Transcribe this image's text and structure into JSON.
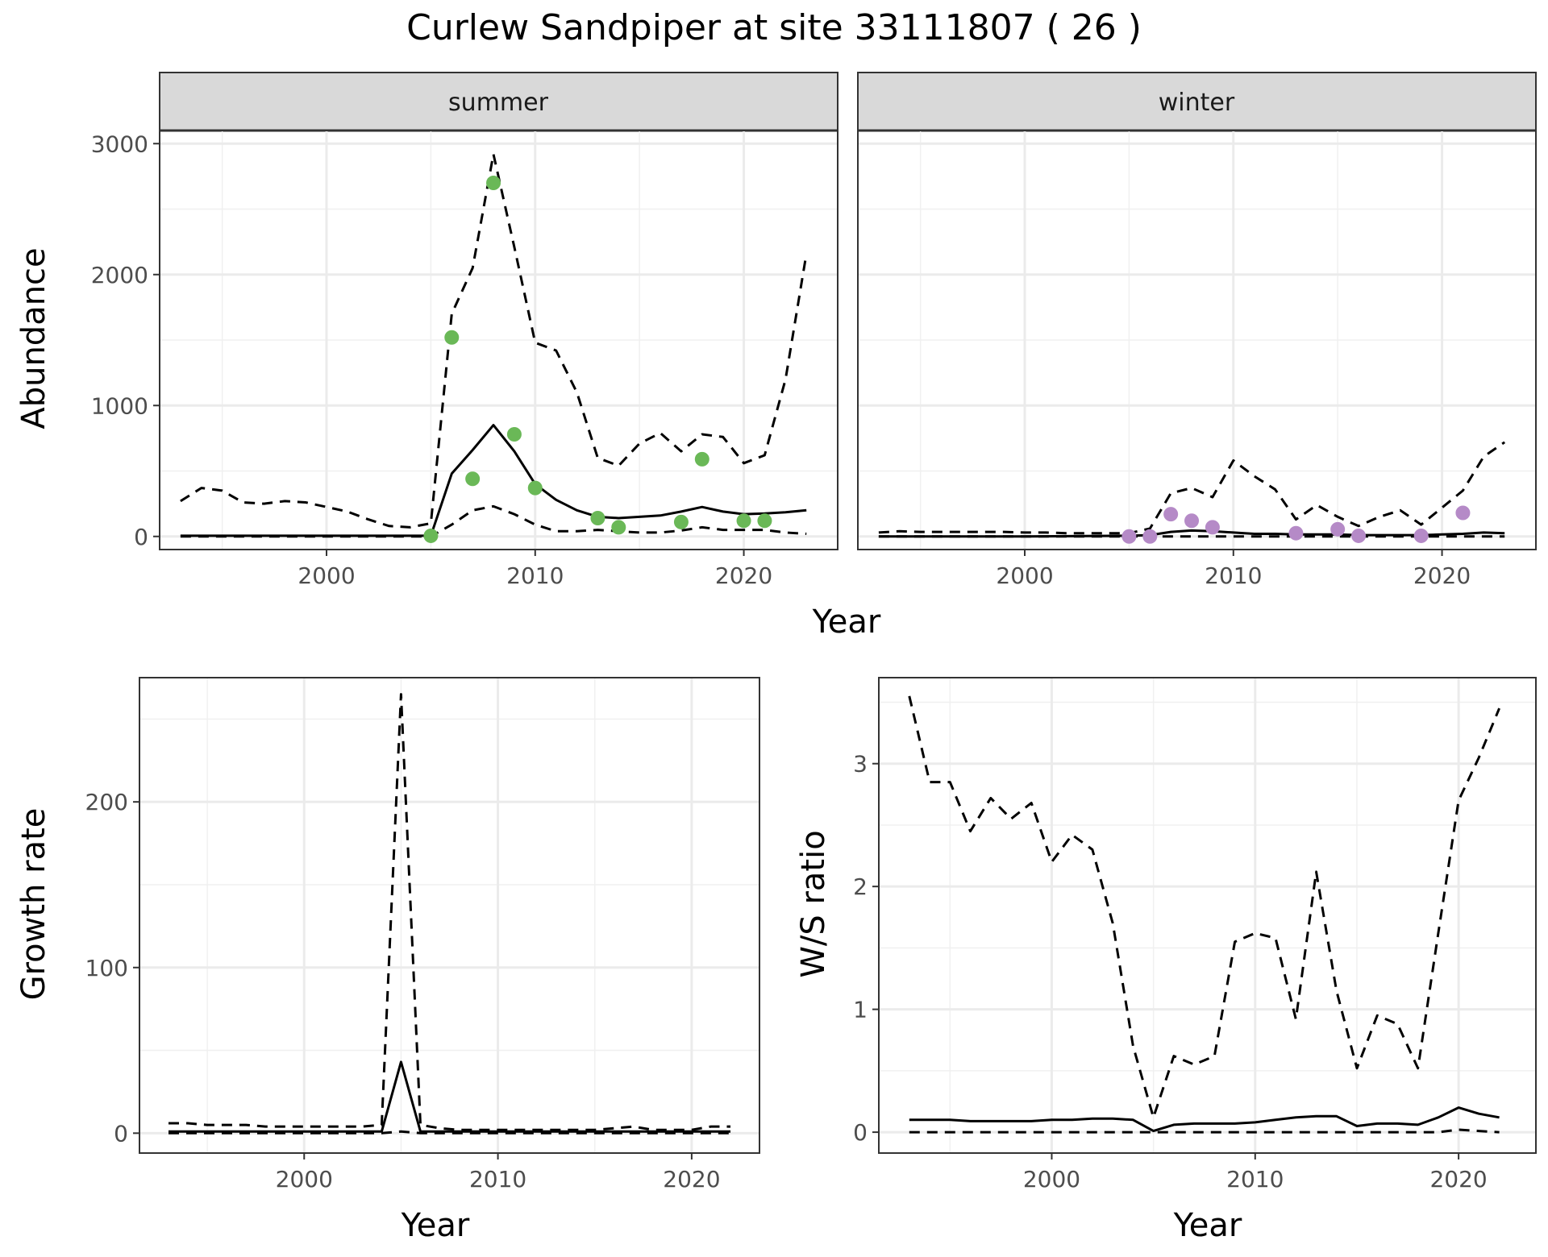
{
  "figure": {
    "title": "Curlew Sandpiper at site 33111807 ( 26 )"
  },
  "chart_data": [
    {
      "id": "abundance-summer",
      "type": "line",
      "facet": "summer",
      "xlabel": "Year",
      "ylabel": "Abundance",
      "xlim": [
        1992,
        2024.5
      ],
      "ylim": [
        -100,
        3100
      ],
      "xticks": [
        2000,
        2010,
        2020
      ],
      "yticks": [
        0,
        1000,
        2000,
        3000
      ],
      "grid": true,
      "legend": "none",
      "point_color": "#6ab857",
      "series": [
        {
          "style": "solid",
          "x": [
            1993,
            1994,
            1995,
            1996,
            1997,
            1998,
            1999,
            2000,
            2001,
            2002,
            2003,
            2004,
            2005,
            2006,
            2007,
            2008,
            2009,
            2010,
            2011,
            2012,
            2013,
            2014,
            2015,
            2016,
            2017,
            2018,
            2019,
            2020,
            2021,
            2022,
            2023
          ],
          "y": [
            5,
            5,
            5,
            5,
            5,
            5,
            5,
            5,
            5,
            5,
            5,
            5,
            5,
            480,
            660,
            850,
            650,
            400,
            280,
            200,
            150,
            140,
            150,
            160,
            190,
            225,
            190,
            170,
            175,
            185,
            200
          ]
        },
        {
          "style": "dashed",
          "x": [
            1993,
            1994,
            1995,
            1996,
            1997,
            1998,
            1999,
            2000,
            2001,
            2002,
            2003,
            2004,
            2005,
            2006,
            2007,
            2008,
            2009,
            2010,
            2011,
            2012,
            2013,
            2014,
            2015,
            2016,
            2017,
            2018,
            2019,
            2020,
            2021,
            2022,
            2023
          ],
          "y": [
            270,
            370,
            350,
            260,
            250,
            270,
            260,
            225,
            190,
            130,
            80,
            70,
            100,
            1700,
            2050,
            2920,
            2210,
            1480,
            1420,
            1100,
            600,
            540,
            710,
            790,
            650,
            780,
            760,
            560,
            620,
            1200,
            2160
          ]
        },
        {
          "style": "dashed",
          "x": [
            1993,
            1994,
            1995,
            1996,
            1997,
            1998,
            1999,
            2000,
            2001,
            2002,
            2003,
            2004,
            2005,
            2006,
            2007,
            2008,
            2009,
            2010,
            2011,
            2012,
            2013,
            2014,
            2015,
            2016,
            2017,
            2018,
            2019,
            2020,
            2021,
            2022,
            2023
          ],
          "y": [
            0,
            0,
            0,
            0,
            0,
            0,
            0,
            0,
            0,
            0,
            0,
            0,
            0,
            90,
            200,
            230,
            170,
            90,
            40,
            40,
            50,
            40,
            30,
            30,
            45,
            70,
            50,
            50,
            50,
            30,
            20
          ]
        }
      ],
      "points": {
        "x": [
          2005,
          2006,
          2007,
          2008,
          2009,
          2010,
          2013,
          2014,
          2017,
          2018,
          2020,
          2021
        ],
        "y": [
          5,
          1520,
          440,
          2700,
          780,
          370,
          140,
          70,
          110,
          590,
          120,
          120
        ]
      }
    },
    {
      "id": "abundance-winter",
      "type": "line",
      "facet": "winter",
      "xlim": [
        1992,
        2024.5
      ],
      "ylim": [
        -100,
        3100
      ],
      "xticks": [
        2000,
        2010,
        2020
      ],
      "yticks": [
        0,
        1000,
        2000,
        3000
      ],
      "grid": true,
      "legend": "none",
      "point_color": "#b58ac7",
      "series": [
        {
          "style": "solid",
          "x": [
            1993,
            1995,
            2000,
            2005,
            2006,
            2007,
            2008,
            2009,
            2010,
            2011,
            2012,
            2013,
            2014,
            2015,
            2016,
            2017,
            2018,
            2019,
            2020,
            2021,
            2022,
            2023
          ],
          "y": [
            0,
            0,
            0,
            5,
            10,
            35,
            45,
            40,
            30,
            20,
            20,
            15,
            15,
            15,
            10,
            10,
            10,
            10,
            15,
            20,
            30,
            25
          ]
        },
        {
          "style": "dashed",
          "x": [
            1993,
            1994,
            1995,
            1996,
            1997,
            1998,
            1999,
            2000,
            2001,
            2002,
            2003,
            2004,
            2005,
            2006,
            2007,
            2008,
            2009,
            2010,
            2011,
            2012,
            2013,
            2014,
            2015,
            2016,
            2017,
            2018,
            2019,
            2020,
            2021,
            2022,
            2023
          ],
          "y": [
            30,
            40,
            35,
            35,
            35,
            35,
            35,
            30,
            30,
            25,
            25,
            25,
            25,
            60,
            330,
            370,
            300,
            580,
            460,
            360,
            130,
            240,
            150,
            80,
            150,
            200,
            90,
            220,
            350,
            610,
            720
          ]
        },
        {
          "style": "dashed",
          "x": [
            1993,
            2000,
            2005,
            2010,
            2015,
            2020,
            2023
          ],
          "y": [
            0,
            0,
            0,
            0,
            0,
            0,
            0
          ]
        }
      ],
      "points": {
        "x": [
          2005,
          2006,
          2007,
          2008,
          2009,
          2013,
          2015,
          2016,
          2019,
          2021
        ],
        "y": [
          0,
          0,
          170,
          120,
          70,
          25,
          55,
          5,
          5,
          180
        ]
      }
    },
    {
      "id": "growth-rate",
      "type": "line",
      "xlabel": "Year",
      "ylabel": "Growth rate",
      "xlim": [
        1991.5,
        2023.5
      ],
      "ylim": [
        -12,
        275
      ],
      "xticks": [
        2000,
        2010,
        2020
      ],
      "yticks": [
        0,
        100,
        200
      ],
      "grid": true,
      "legend": "none",
      "series": [
        {
          "style": "solid",
          "x": [
            1993,
            1995,
            2000,
            2004,
            2005,
            2006,
            2008,
            2010,
            2015,
            2020,
            2022
          ],
          "y": [
            1,
            1,
            1,
            1,
            43,
            1,
            1,
            1,
            1,
            1,
            1
          ]
        },
        {
          "style": "dashed",
          "x": [
            1993,
            1994,
            1995,
            1996,
            1997,
            1998,
            1999,
            2000,
            2001,
            2002,
            2003,
            2004,
            2005,
            2006,
            2007,
            2008,
            2009,
            2010,
            2011,
            2012,
            2013,
            2014,
            2015,
            2016,
            2017,
            2018,
            2019,
            2020,
            2021,
            2022
          ],
          "y": [
            6,
            6,
            5,
            5,
            5,
            4,
            4,
            4,
            4,
            4,
            4,
            5,
            265,
            5,
            3,
            2,
            2,
            2,
            2,
            2,
            2,
            2,
            2,
            3,
            4,
            2,
            2,
            2,
            4,
            4
          ]
        },
        {
          "style": "dashed",
          "x": [
            1993,
            2000,
            2004,
            2005,
            2006,
            2010,
            2015,
            2020,
            2022
          ],
          "y": [
            0,
            0,
            0,
            1,
            0,
            0,
            0,
            0,
            0
          ]
        }
      ]
    },
    {
      "id": "ws-ratio",
      "type": "line",
      "xlabel": "Year",
      "ylabel": "W/S ratio",
      "xlim": [
        1991.5,
        2023.8
      ],
      "ylim": [
        -0.17,
        3.7
      ],
      "xticks": [
        2000,
        2010,
        2020
      ],
      "yticks": [
        0,
        1,
        2,
        3
      ],
      "grid": true,
      "legend": "none",
      "series": [
        {
          "style": "solid",
          "x": [
            1993,
            1994,
            1995,
            1996,
            1997,
            1998,
            1999,
            2000,
            2001,
            2002,
            2003,
            2004,
            2005,
            2006,
            2007,
            2008,
            2009,
            2010,
            2011,
            2012,
            2013,
            2014,
            2015,
            2016,
            2017,
            2018,
            2019,
            2020,
            2021,
            2022
          ],
          "y": [
            0.1,
            0.1,
            0.1,
            0.09,
            0.09,
            0.09,
            0.09,
            0.1,
            0.1,
            0.11,
            0.11,
            0.1,
            0.01,
            0.06,
            0.07,
            0.07,
            0.07,
            0.08,
            0.1,
            0.12,
            0.13,
            0.13,
            0.05,
            0.07,
            0.07,
            0.06,
            0.12,
            0.2,
            0.15,
            0.12
          ]
        },
        {
          "style": "dashed",
          "x": [
            1993,
            1994,
            1995,
            1996,
            1997,
            1998,
            1999,
            2000,
            2001,
            2002,
            2003,
            2004,
            2005,
            2006,
            2007,
            2008,
            2009,
            2010,
            2011,
            2012,
            2013,
            2014,
            2015,
            2016,
            2017,
            2018,
            2019,
            2020,
            2021,
            2022
          ],
          "y": [
            3.55,
            2.85,
            2.85,
            2.45,
            2.72,
            2.55,
            2.68,
            2.2,
            2.42,
            2.3,
            1.7,
            0.7,
            0.12,
            0.62,
            0.55,
            0.62,
            1.55,
            1.62,
            1.58,
            0.92,
            2.12,
            1.15,
            0.52,
            0.95,
            0.88,
            0.52,
            1.62,
            2.7,
            3.05,
            3.45
          ]
        },
        {
          "style": "dashed",
          "x": [
            1993,
            1995,
            2000,
            2005,
            2010,
            2015,
            2019,
            2020,
            2021,
            2022
          ],
          "y": [
            0,
            0,
            0,
            0,
            0,
            0,
            0,
            0.02,
            0.01,
            0
          ]
        }
      ]
    }
  ]
}
